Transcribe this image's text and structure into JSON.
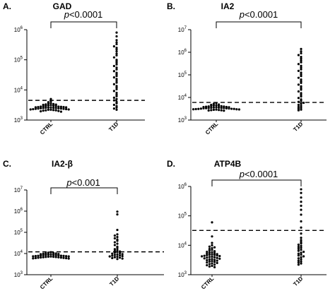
{
  "figure": {
    "panels": [
      {
        "letter": "A.",
        "title": "GAD",
        "pvalue_prefix": "p",
        "pvalue_rest": "<0.0001",
        "categories": [
          "CTRL",
          "T1D"
        ],
        "y_ticks": [
          {
            "value": 1000,
            "label": "10",
            "exp": "3"
          },
          {
            "value": 10000,
            "label": "10",
            "exp": "4"
          },
          {
            "value": 100000,
            "label": "10",
            "exp": "5"
          },
          {
            "value": 1000000,
            "label": "10",
            "exp": "6"
          }
        ],
        "axis_color": "#000000"
      },
      {
        "letter": "B.",
        "title": "IA2",
        "pvalue_prefix": "p",
        "pvalue_rest": "<0.0001",
        "categories": [
          "CTRL",
          "T1D"
        ],
        "y_ticks": [
          {
            "value": 1000,
            "label": "10",
            "exp": "3"
          },
          {
            "value": 10000,
            "label": "10",
            "exp": "4"
          },
          {
            "value": 100000,
            "label": "10",
            "exp": "5"
          },
          {
            "value": 1000000,
            "label": "10",
            "exp": "6"
          },
          {
            "value": 10000000,
            "label": "10",
            "exp": "7"
          }
        ],
        "axis_color": "#000000"
      },
      {
        "letter": "C.",
        "title": "IA2-β",
        "pvalue_prefix": "p",
        "pvalue_rest": "<0.001",
        "categories": [
          "CTRL",
          "T1D"
        ],
        "y_ticks": [
          {
            "value": 1000,
            "label": "10",
            "exp": "3"
          },
          {
            "value": 10000,
            "label": "10",
            "exp": "4"
          },
          {
            "value": 100000,
            "label": "10",
            "exp": "5"
          },
          {
            "value": 1000000,
            "label": "10",
            "exp": "6"
          },
          {
            "value": 10000000,
            "label": "10",
            "exp": "7"
          }
        ],
        "axis_color": "#000000"
      },
      {
        "letter": "D.",
        "title": "ATP4B",
        "pvalue_prefix": "p",
        "pvalue_rest": "<0.0001",
        "categories": [
          "CTRL",
          "T1D"
        ],
        "y_ticks": [
          {
            "value": 1000,
            "label": "10",
            "exp": "3"
          },
          {
            "value": 10000,
            "label": "10",
            "exp": "4"
          },
          {
            "value": 100000,
            "label": "10",
            "exp": "5"
          },
          {
            "value": 1000000,
            "label": "10",
            "exp": "6"
          }
        ],
        "axis_color": "#000000"
      }
    ]
  },
  "chart_data": [
    {
      "type": "scatter",
      "subtype": "dot-plot",
      "title": "GAD",
      "categories": [
        "CTRL",
        "T1D"
      ],
      "y_scale": "log",
      "ylim": [
        1000,
        1000000
      ],
      "cutoff": 4500,
      "significance": "p<0.0001",
      "series": [
        {
          "category": "CTRL",
          "values": [
            5000,
            4200,
            3900,
            3600,
            3500,
            3400,
            3300,
            3250,
            3200,
            3100,
            3050,
            3000,
            2950,
            2900,
            2850,
            2800,
            2800,
            2750,
            2700,
            2700,
            2650,
            2650,
            2600,
            2600,
            2550,
            2550,
            2500,
            2500,
            2450,
            2450,
            2400,
            2400,
            2350,
            2350,
            2300,
            2300,
            2250,
            2250,
            2200,
            2200,
            2150,
            2100,
            2100,
            2050,
            2000,
            1950,
            1900
          ]
        },
        {
          "category": "T1D",
          "values": [
            800000,
            600000,
            450000,
            380000,
            330000,
            280000,
            250000,
            220000,
            190000,
            160000,
            140000,
            120000,
            100000,
            90000,
            80000,
            70000,
            62000,
            55000,
            48000,
            42000,
            37000,
            33000,
            29000,
            26000,
            23000,
            20000,
            17500,
            15500,
            13500,
            12000,
            10500,
            9200,
            8000,
            7000,
            6200,
            5500,
            5000,
            4500,
            4000,
            3600,
            3200,
            2900,
            2600,
            2400,
            2200
          ]
        }
      ]
    },
    {
      "type": "scatter",
      "subtype": "dot-plot",
      "title": "IA2",
      "categories": [
        "CTRL",
        "T1D"
      ],
      "y_scale": "log",
      "ylim": [
        1000,
        10000000
      ],
      "cutoff": 6000,
      "significance": "p<0.0001",
      "series": [
        {
          "category": "CTRL",
          "values": [
            5600,
            5200,
            4900,
            4700,
            4500,
            4400,
            4300,
            4200,
            4100,
            4000,
            3950,
            3900,
            3800,
            3750,
            3700,
            3650,
            3600,
            3550,
            3500,
            3450,
            3400,
            3400,
            3350,
            3300,
            3300,
            3250,
            3200,
            3150,
            3100,
            3100,
            3050,
            3000,
            3000,
            2950,
            2900,
            2850,
            2800,
            2750,
            2700,
            2650,
            2600
          ]
        },
        {
          "category": "T1D",
          "values": [
            1400000,
            1100000,
            900000,
            750000,
            620000,
            520000,
            430000,
            360000,
            300000,
            250000,
            210000,
            175000,
            150000,
            125000,
            105000,
            88000,
            74000,
            62000,
            52000,
            44000,
            37000,
            31000,
            26000,
            22000,
            18500,
            15500,
            13000,
            11000,
            9500,
            8200,
            7200,
            6400,
            5800,
            5200,
            4700,
            4200,
            3800,
            3500,
            3200,
            2900,
            2700
          ]
        }
      ]
    },
    {
      "type": "scatter",
      "subtype": "dot-plot",
      "title": "IA2-β",
      "categories": [
        "CTRL",
        "T1D"
      ],
      "y_scale": "log",
      "ylim": [
        1000,
        10000000
      ],
      "cutoff": 12000,
      "significance": "p<0.001",
      "series": [
        {
          "category": "CTRL",
          "values": [
            11500,
            11000,
            10500,
            10200,
            10000,
            9700,
            9500,
            9300,
            9100,
            8900,
            8700,
            8600,
            8400,
            8300,
            8200,
            8000,
            7900,
            7800,
            7700,
            7600,
            7500,
            7400,
            7300,
            7200,
            7100,
            7000,
            6900,
            6800,
            6700,
            6600,
            6500,
            6400,
            6300,
            6200,
            6100,
            6000,
            5900,
            5800
          ]
        },
        {
          "category": "T1D",
          "values": [
            950000,
            700000,
            130000,
            80000,
            70000,
            60000,
            52000,
            46000,
            40000,
            34000,
            29000,
            25000,
            21000,
            18000,
            16000,
            14500,
            13500,
            12500,
            11800,
            11000,
            10400,
            9900,
            9400,
            9000,
            8600,
            8200,
            7900,
            7600,
            7300,
            7000,
            6700,
            6400,
            6100,
            5800,
            5500
          ]
        }
      ]
    },
    {
      "type": "scatter",
      "subtype": "dot-plot",
      "title": "ATP4B",
      "categories": [
        "CTRL",
        "T1D"
      ],
      "y_scale": "log",
      "ylim": [
        1000,
        1000000
      ],
      "cutoff": 32000,
      "significance": "p<0.0001",
      "series": [
        {
          "category": "CTRL",
          "values": [
            60000,
            20000,
            12000,
            10000,
            9000,
            8500,
            8000,
            7500,
            7000,
            6600,
            6300,
            6000,
            5800,
            5600,
            5400,
            5200,
            5000,
            4900,
            4800,
            4700,
            4600,
            4500,
            4400,
            4300,
            4200,
            4100,
            4000,
            3900,
            3800,
            3700,
            3600,
            3500,
            3400,
            3300,
            3200,
            3100,
            3000,
            2900,
            2800,
            2700,
            2600,
            2500,
            2400,
            2300,
            2200,
            2100,
            2000,
            1900,
            1800
          ]
        },
        {
          "category": "T1D",
          "values": [
            800000,
            600000,
            420000,
            300000,
            220000,
            160000,
            110000,
            65000,
            40000,
            25000,
            18000,
            15000,
            13000,
            11500,
            10500,
            9500,
            8800,
            8200,
            7600,
            7000,
            6500,
            6000,
            5600,
            5200,
            4800,
            4500,
            4200,
            3900,
            3600,
            3300,
            3000,
            2800,
            2600,
            2400,
            2200
          ]
        }
      ]
    }
  ]
}
